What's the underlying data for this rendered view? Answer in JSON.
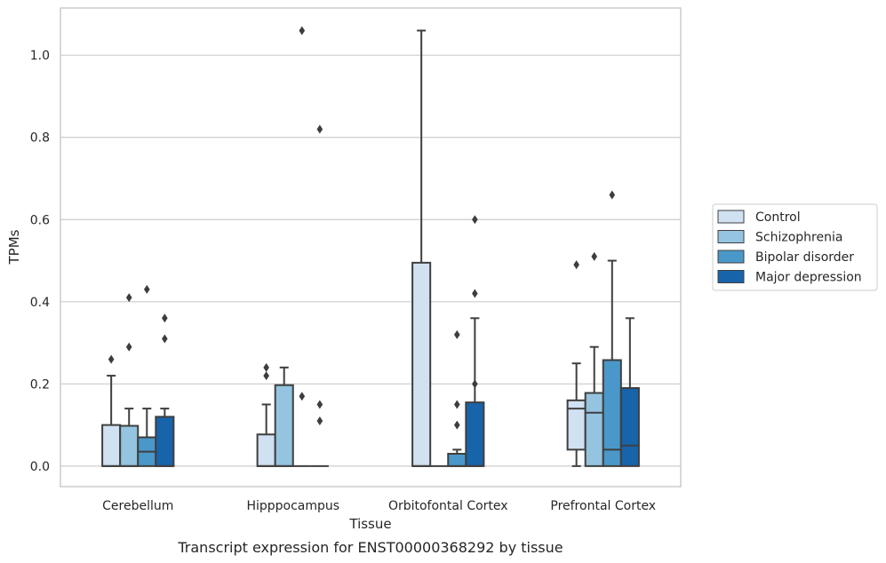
{
  "chart_data": {
    "type": "boxplot",
    "caption": "Transcript expression for ENST00000368292 by tissue",
    "xlabel": "Tissue",
    "ylabel": "TPMs",
    "ylim": [
      -0.05,
      1.115
    ],
    "yticks": [
      0.0,
      0.2,
      0.4,
      0.6,
      0.8,
      1.0
    ],
    "ytick_labels": [
      "0.0",
      "0.2",
      "0.4",
      "0.6",
      "0.8",
      "1.0"
    ],
    "grid": "horizontal",
    "legend_position": "right",
    "categories": [
      "Cerebellum",
      "Hipppocampus",
      "Orbitofontal Cortex",
      "Prefrontal Cortex"
    ],
    "series": [
      {
        "name": "Control",
        "color": "#d0e1f2",
        "boxes": [
          {
            "q1": 0.0,
            "median": 0.0,
            "q3": 0.1,
            "whisker_low": 0.0,
            "whisker_high": 0.22,
            "outliers": [
              0.26
            ]
          },
          {
            "q1": 0.0,
            "median": 0.0,
            "q3": 0.077,
            "whisker_low": 0.0,
            "whisker_high": 0.15,
            "outliers": [
              0.22,
              0.24
            ]
          },
          {
            "q1": 0.0,
            "median": 0.0,
            "q3": 0.495,
            "whisker_low": 0.0,
            "whisker_high": 1.06,
            "outliers": []
          },
          {
            "q1": 0.04,
            "median": 0.14,
            "q3": 0.16,
            "whisker_low": 0.0,
            "whisker_high": 0.25,
            "outliers": [
              0.49
            ]
          }
        ]
      },
      {
        "name": "Schizophrenia",
        "color": "#94c4df",
        "boxes": [
          {
            "q1": 0.0,
            "median": 0.0,
            "q3": 0.098,
            "whisker_low": 0.0,
            "whisker_high": 0.14,
            "outliers": [
              0.29,
              0.41
            ]
          },
          {
            "q1": 0.0,
            "median": 0.0,
            "q3": 0.197,
            "whisker_low": 0.0,
            "whisker_high": 0.24,
            "outliers": []
          },
          {
            "q1": 0.0,
            "median": 0.0,
            "q3": 0.0,
            "whisker_low": 0.0,
            "whisker_high": 0.0,
            "outliers": []
          },
          {
            "q1": 0.0,
            "median": 0.13,
            "q3": 0.178,
            "whisker_low": 0.0,
            "whisker_high": 0.29,
            "outliers": [
              0.51
            ]
          }
        ]
      },
      {
        "name": "Bipolar disorder",
        "color": "#4a98c9",
        "boxes": [
          {
            "q1": 0.0,
            "median": 0.035,
            "q3": 0.07,
            "whisker_low": 0.0,
            "whisker_high": 0.14,
            "outliers": [
              0.43
            ]
          },
          {
            "q1": 0.0,
            "median": 0.0,
            "q3": 0.0,
            "whisker_low": 0.0,
            "whisker_high": 0.0,
            "outliers": [
              1.06,
              0.17
            ]
          },
          {
            "q1": 0.0,
            "median": 0.0,
            "q3": 0.03,
            "whisker_low": 0.0,
            "whisker_high": 0.04,
            "outliers": [
              0.32,
              0.15,
              0.1
            ]
          },
          {
            "q1": 0.0,
            "median": 0.04,
            "q3": 0.258,
            "whisker_low": 0.0,
            "whisker_high": 0.5,
            "outliers": [
              0.66
            ]
          }
        ]
      },
      {
        "name": "Major depression",
        "color": "#1764ab",
        "boxes": [
          {
            "q1": 0.0,
            "median": 0.0,
            "q3": 0.12,
            "whisker_low": 0.0,
            "whisker_high": 0.14,
            "outliers": [
              0.36,
              0.31
            ]
          },
          {
            "q1": 0.0,
            "median": 0.0,
            "q3": 0.0,
            "whisker_low": 0.0,
            "whisker_high": 0.0,
            "outliers": [
              0.82,
              0.15,
              0.11
            ]
          },
          {
            "q1": 0.0,
            "median": 0.0,
            "q3": 0.155,
            "whisker_low": 0.0,
            "whisker_high": 0.36,
            "outliers": [
              0.6,
              0.42,
              0.2
            ]
          },
          {
            "q1": 0.0,
            "median": 0.05,
            "q3": 0.19,
            "whisker_low": 0.0,
            "whisker_high": 0.36,
            "outliers": []
          }
        ]
      }
    ]
  }
}
